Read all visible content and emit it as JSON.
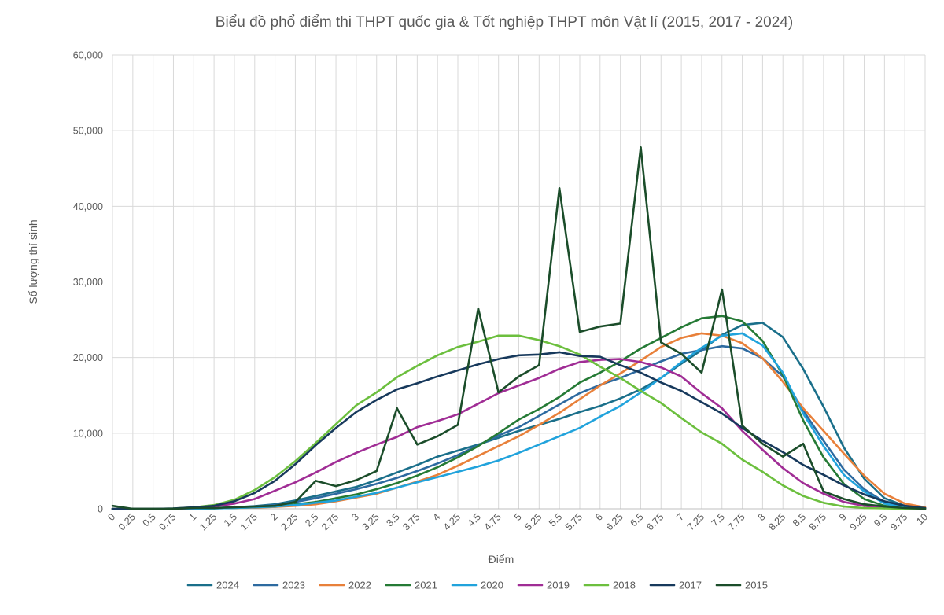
{
  "chart_data": {
    "type": "line",
    "title": "Biểu đồ phổ điểm thi THPT quốc gia & Tốt nghiệp THPT môn Vật lí (2015, 2017 - 2024)",
    "xlabel": "Điểm",
    "ylabel": "Số lượng thí sinh",
    "ylim": [
      0,
      60000
    ],
    "y_ticks": [
      0,
      10000,
      20000,
      30000,
      40000,
      50000,
      60000
    ],
    "y_tick_labels": [
      "0",
      "10,000",
      "20,000",
      "30,000",
      "40,000",
      "50,000",
      "60,000"
    ],
    "grid": true,
    "legend_position": "bottom",
    "categories": [
      "0",
      "0.25",
      "0.5",
      "0.75",
      "1",
      "1.25",
      "1.5",
      "1.75",
      "2",
      "2.25",
      "2.5",
      "2.75",
      "3",
      "3.25",
      "3.5",
      "3.75",
      "4",
      "4.25",
      "4.5",
      "4.75",
      "5",
      "5.25",
      "5.5",
      "5.75",
      "6",
      "6.25",
      "6.5",
      "6.75",
      "7",
      "7.25",
      "7.5",
      "7.75",
      "8",
      "8.25",
      "8.5",
      "8.75",
      "9",
      "9.25",
      "9.5",
      "9.75",
      "10"
    ],
    "series": [
      {
        "name": "2024",
        "color": "#1a6f8a",
        "values": [
          0,
          0,
          0,
          0,
          50,
          100,
          200,
          350,
          600,
          1100,
          1700,
          2300,
          2900,
          3800,
          4800,
          5800,
          6900,
          7700,
          8500,
          9400,
          10300,
          11100,
          11900,
          12800,
          13600,
          14600,
          15800,
          17300,
          19200,
          21000,
          23000,
          24300,
          24600,
          22700,
          18500,
          13500,
          8100,
          4000,
          1400,
          400,
          100
        ]
      },
      {
        "name": "2023",
        "color": "#2d6aa0",
        "values": [
          0,
          0,
          0,
          0,
          50,
          100,
          200,
          300,
          500,
          900,
          1400,
          2000,
          2600,
          3300,
          4100,
          5000,
          6000,
          7100,
          8400,
          9700,
          10800,
          12300,
          13800,
          15300,
          16400,
          17300,
          18400,
          19500,
          20500,
          21000,
          21500,
          21200,
          19900,
          17500,
          13000,
          9000,
          5200,
          2600,
          900,
          300,
          100
        ]
      },
      {
        "name": "2022",
        "color": "#e8803a",
        "values": [
          0,
          0,
          0,
          0,
          0,
          50,
          100,
          150,
          250,
          400,
          600,
          1000,
          1500,
          2000,
          2800,
          3600,
          4500,
          5700,
          7000,
          8300,
          9600,
          11100,
          12700,
          14500,
          16300,
          17900,
          19600,
          21400,
          22600,
          23200,
          22900,
          21900,
          19900,
          16800,
          13300,
          10300,
          7300,
          4400,
          2000,
          700,
          200
        ]
      },
      {
        "name": "2021",
        "color": "#257a35",
        "values": [
          0,
          0,
          0,
          0,
          0,
          50,
          100,
          200,
          300,
          600,
          900,
          1400,
          1900,
          2600,
          3400,
          4400,
          5500,
          6800,
          8300,
          10000,
          11800,
          13200,
          14800,
          16700,
          18000,
          19500,
          21200,
          22600,
          24000,
          25200,
          25500,
          24800,
          22200,
          17700,
          11700,
          6800,
          3300,
          1300,
          400,
          100,
          0
        ]
      },
      {
        "name": "2020",
        "color": "#21a3dc",
        "values": [
          0,
          0,
          0,
          0,
          0,
          50,
          100,
          200,
          300,
          500,
          800,
          1100,
          1600,
          2100,
          2800,
          3500,
          4200,
          4900,
          5600,
          6400,
          7400,
          8500,
          9600,
          10700,
          12200,
          13600,
          15400,
          17300,
          19400,
          21300,
          22900,
          23200,
          21600,
          18000,
          12600,
          8300,
          4500,
          2300,
          700,
          200,
          0
        ]
      },
      {
        "name": "2019",
        "color": "#a02d95",
        "values": [
          0,
          0,
          0,
          0,
          100,
          300,
          700,
          1300,
          2400,
          3500,
          4800,
          6200,
          7400,
          8500,
          9500,
          10800,
          11600,
          12500,
          13900,
          15300,
          16300,
          17300,
          18500,
          19400,
          19700,
          19800,
          19400,
          18700,
          17500,
          15300,
          13300,
          10300,
          7800,
          5400,
          3400,
          2000,
          900,
          400,
          100,
          0,
          0
        ]
      },
      {
        "name": "2018",
        "color": "#6cbf3e",
        "values": [
          0,
          0,
          0,
          50,
          200,
          500,
          1200,
          2500,
          4200,
          6300,
          8700,
          11200,
          13700,
          15400,
          17400,
          18900,
          20300,
          21400,
          22100,
          22900,
          22900,
          22300,
          21500,
          20400,
          18800,
          17300,
          15600,
          14000,
          12000,
          10100,
          8600,
          6500,
          4900,
          3100,
          1700,
          800,
          300,
          100,
          50,
          0,
          0
        ]
      },
      {
        "name": "2017",
        "color": "#17395c",
        "values": [
          0,
          0,
          0,
          50,
          200,
          400,
          1000,
          2100,
          3700,
          5900,
          8400,
          10700,
          12800,
          14400,
          15800,
          16600,
          17500,
          18300,
          19100,
          19800,
          20300,
          20400,
          20700,
          20200,
          20100,
          19000,
          18000,
          16700,
          15600,
          14100,
          12600,
          10700,
          9000,
          7500,
          5800,
          4500,
          3100,
          1900,
          1000,
          400,
          100
        ]
      },
      {
        "name": "2015",
        "color": "#1b4d2a",
        "values": [
          400,
          0,
          0,
          0,
          100,
          100,
          200,
          300,
          400,
          900,
          3700,
          3000,
          3800,
          5000,
          13300,
          8500,
          9600,
          11100,
          26500,
          15400,
          17500,
          19000,
          42400,
          23400,
          24100,
          24500,
          47800,
          22000,
          20500,
          18000,
          29000,
          11000,
          8600,
          6900,
          8600,
          2300,
          1300,
          600,
          300,
          100,
          0
        ]
      }
    ]
  }
}
